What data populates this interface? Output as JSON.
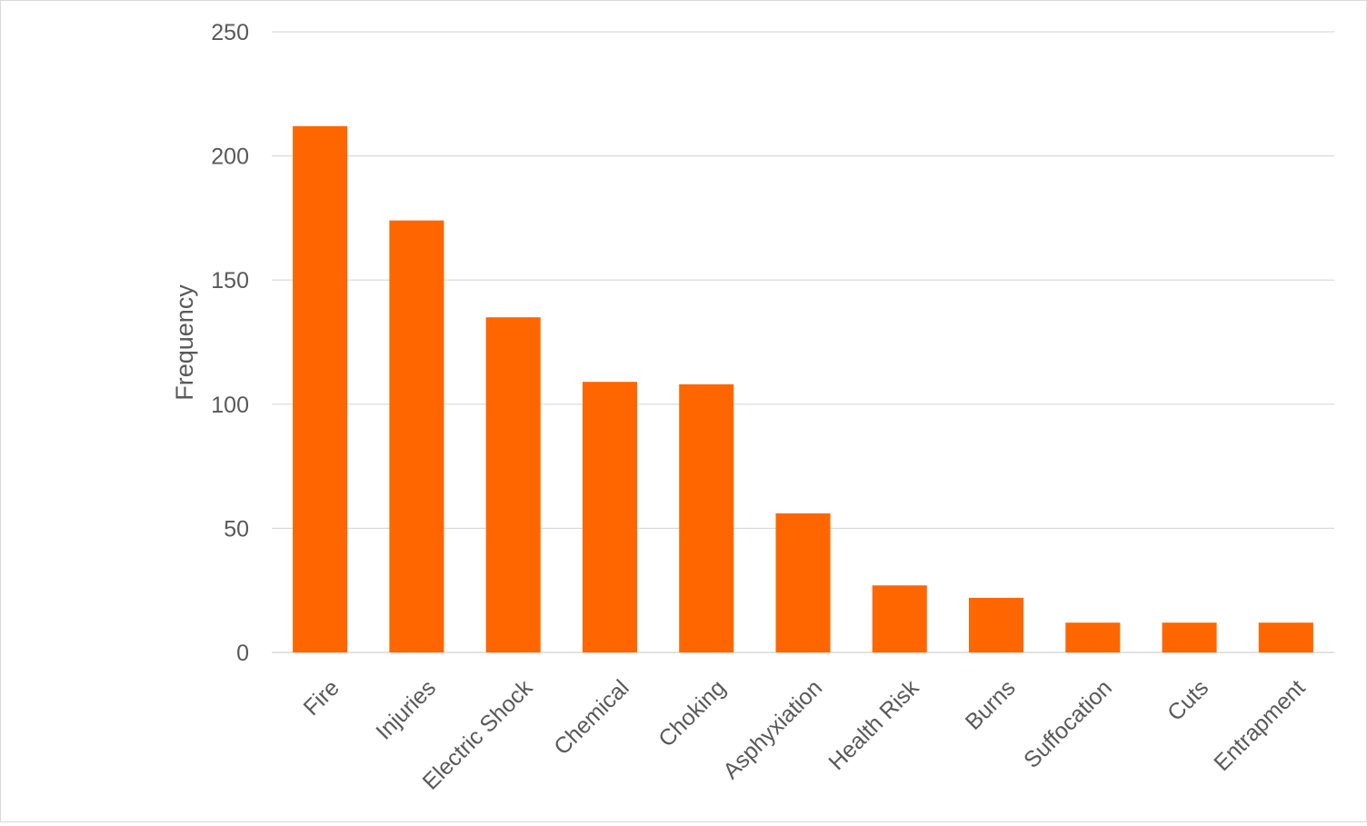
{
  "chart_data": {
    "type": "bar",
    "title": "",
    "xlabel": "",
    "ylabel": "Frequency",
    "ylim": [
      0,
      250
    ],
    "yticks": [
      0,
      50,
      100,
      150,
      200,
      250
    ],
    "grid": true,
    "legend": "none",
    "bar_color": "#FF6600",
    "grid_color": "#d9d9d9",
    "categories": [
      "Fire",
      "Injuries",
      "Electric Shock",
      "Chemical",
      "Choking",
      "Asphyxiation",
      "Health Risk",
      "Burns",
      "Suffocation",
      "Cuts",
      "Entrapment"
    ],
    "values": [
      212,
      174,
      135,
      109,
      108,
      56,
      27,
      22,
      12,
      12,
      12
    ]
  }
}
